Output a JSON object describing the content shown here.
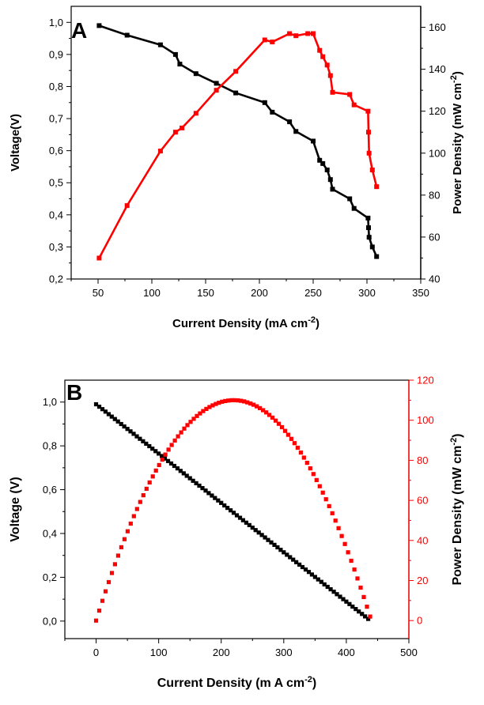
{
  "chart_data": [
    {
      "type": "line",
      "panel_label": "A",
      "xlabel": "Current Density (mA cm",
      "xlabel_sup": "-2",
      "xlabel_end": ")",
      "ylabel": "Voltage(V)",
      "y2label": "Power Density (mW cm",
      "y2label_sup": "-2",
      "y2label_end": ")",
      "xlim": [
        25,
        350
      ],
      "ylim": [
        0.2,
        1.05
      ],
      "y2lim": [
        40,
        170
      ],
      "xticks": [
        50,
        100,
        150,
        200,
        250,
        300,
        350
      ],
      "yticks": [
        0.2,
        0.3,
        0.4,
        0.5,
        0.6,
        0.7,
        0.8,
        0.9,
        1.0
      ],
      "ytick_labels": [
        "0,2",
        "0,3",
        "0,4",
        "0,5",
        "0,6",
        "0,7",
        "0,8",
        "0,9",
        "1,0"
      ],
      "y2ticks": [
        40,
        60,
        80,
        100,
        120,
        140,
        160
      ],
      "series": [
        {
          "name": "Voltage",
          "axis": "left",
          "color": "#000000",
          "x": [
            51,
            77,
            108,
            122,
            126,
            141,
            160,
            178,
            205,
            212,
            228,
            234,
            250,
            256,
            259,
            263,
            266,
            268,
            284,
            288,
            301,
            301.5,
            302,
            305,
            309
          ],
          "y": [
            0.99,
            0.96,
            0.93,
            0.9,
            0.87,
            0.84,
            0.81,
            0.78,
            0.75,
            0.72,
            0.69,
            0.66,
            0.63,
            0.57,
            0.56,
            0.54,
            0.51,
            0.48,
            0.45,
            0.42,
            0.39,
            0.36,
            0.33,
            0.3,
            0.27
          ]
        },
        {
          "name": "Power Density",
          "axis": "right",
          "color": "#ff0000",
          "x": [
            51,
            77,
            108,
            122,
            128,
            141,
            160,
            178,
            205,
            212,
            228,
            234,
            245,
            250,
            256,
            259,
            263,
            266,
            268,
            284,
            288,
            301,
            301.5,
            302,
            305,
            309
          ],
          "y": [
            50,
            75,
            101,
            110,
            112,
            119,
            130,
            139,
            154,
            153,
            157,
            156,
            157,
            157,
            149,
            146,
            142,
            137,
            129,
            128,
            123,
            120,
            110,
            100,
            92,
            84
          ]
        }
      ]
    },
    {
      "type": "scatter",
      "panel_label": "B",
      "xlabel": "Current Density (m A cm",
      "xlabel_sup": "-2",
      "xlabel_end": ")",
      "ylabel": "Voltage (V)",
      "y2label": "Power Density (mW cm",
      "y2label_sup": "-2",
      "y2label_end": ")",
      "xlim": [
        -50,
        500
      ],
      "ylim": [
        -0.08,
        1.1
      ],
      "y2lim": [
        -9,
        120
      ],
      "xticks": [
        0,
        100,
        200,
        300,
        400,
        500
      ],
      "yticks": [
        0.0,
        0.2,
        0.4,
        0.6,
        0.8,
        1.0
      ],
      "ytick_labels": [
        "0,0",
        "0,2",
        "0,4",
        "0,6",
        "0,8",
        "1,0"
      ],
      "y2ticks": [
        0,
        20,
        40,
        60,
        80,
        100,
        120
      ],
      "series": [
        {
          "name": "Voltage",
          "axis": "left",
          "color": "#000000",
          "model": "linear",
          "v0": 0.99,
          "x_end": 435,
          "v_end": 0.01,
          "n_points": 88
        },
        {
          "name": "Power Density",
          "axis": "right",
          "color": "#ff0000",
          "model": "parabola",
          "x_peak": 220,
          "peak": 110,
          "x_end": 438,
          "n_points": 88
        }
      ]
    }
  ]
}
